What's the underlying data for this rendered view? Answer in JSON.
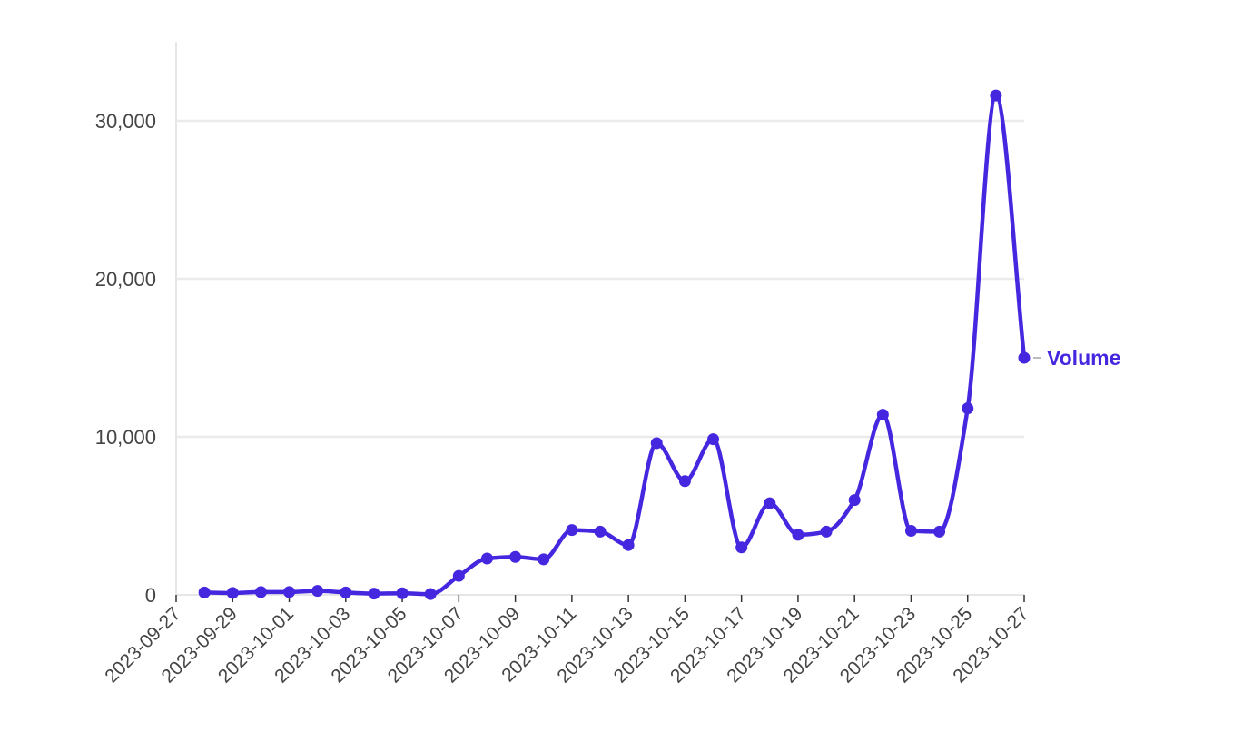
{
  "chart_data": {
    "type": "line",
    "title": "",
    "xlabel": "",
    "ylabel": "",
    "x_ticks": [
      "2023-09-27",
      "2023-09-29",
      "2023-10-01",
      "2023-10-03",
      "2023-10-05",
      "2023-10-07",
      "2023-10-09",
      "2023-10-11",
      "2023-10-13",
      "2023-10-15",
      "2023-10-17",
      "2023-10-19",
      "2023-10-21",
      "2023-10-23",
      "2023-10-25",
      "2023-10-27"
    ],
    "x_range": [
      "2023-09-27",
      "2023-10-27"
    ],
    "y_ticks": [
      {
        "value": 0,
        "label": "0"
      },
      {
        "value": 10000,
        "label": "10,000"
      },
      {
        "value": 20000,
        "label": "20,000"
      },
      {
        "value": 30000,
        "label": "30,000"
      }
    ],
    "ylim": [
      0,
      35000
    ],
    "grid": "horizontal",
    "curve": "smooth",
    "series": [
      {
        "name": "Volume",
        "color": "#4527e0",
        "x": [
          "2023-09-28",
          "2023-09-29",
          "2023-09-30",
          "2023-10-01",
          "2023-10-02",
          "2023-10-03",
          "2023-10-04",
          "2023-10-05",
          "2023-10-06",
          "2023-10-07",
          "2023-10-08",
          "2023-10-09",
          "2023-10-10",
          "2023-10-11",
          "2023-10-12",
          "2023-10-13",
          "2023-10-14",
          "2023-10-15",
          "2023-10-16",
          "2023-10-17",
          "2023-10-18",
          "2023-10-19",
          "2023-10-20",
          "2023-10-21",
          "2023-10-22",
          "2023-10-23",
          "2023-10-24",
          "2023-10-25",
          "2023-10-26",
          "2023-10-27"
        ],
        "values": [
          150,
          120,
          180,
          180,
          250,
          150,
          80,
          100,
          50,
          1200,
          2300,
          2400,
          2250,
          4100,
          4000,
          3150,
          9600,
          7200,
          9850,
          3000,
          5800,
          3800,
          4000,
          6000,
          11400,
          4050,
          4000,
          11800,
          31600,
          15000
        ]
      }
    ],
    "annotations": [
      {
        "text": "Volume",
        "series": "Volume",
        "anchor": "last-point",
        "color": "#4527e0"
      }
    ]
  }
}
